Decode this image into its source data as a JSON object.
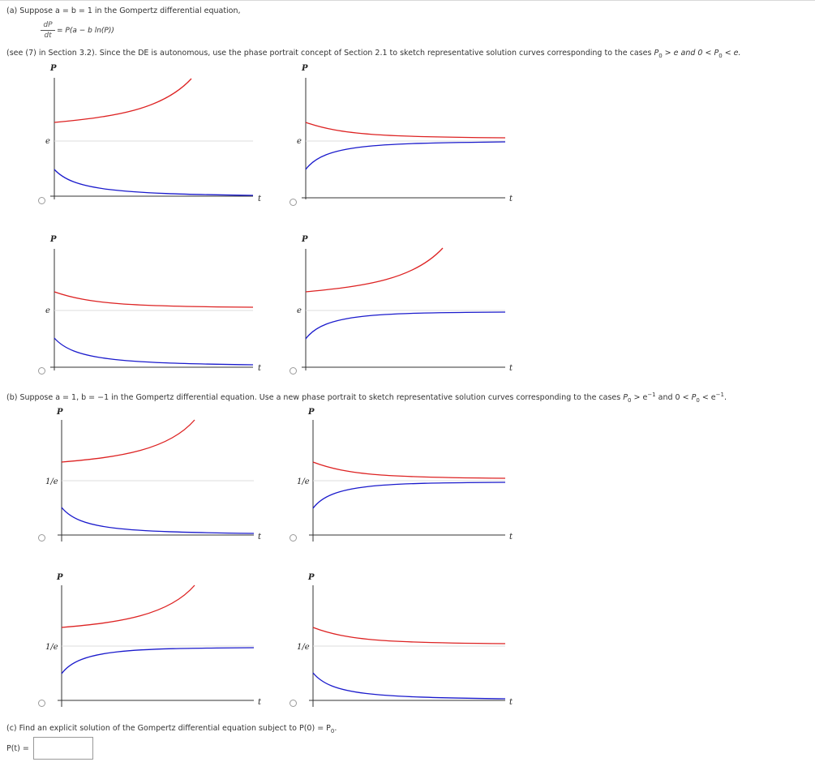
{
  "part_a": {
    "intro": "(a) Suppose a = b = 1 in the Gompertz differential equation,",
    "eq_num": "dP",
    "eq_den": "dt",
    "eq_rhs": "= P(a − b ln(P))",
    "desc_pre": "(see (7) in Section 3.2). Since the DE is autonomous, use the phase portrait concept of Section 2.1 to sketch representative solution curves corresponding to the cases ",
    "desc_c1_base": "P",
    "desc_c1_sub": "0",
    "desc_c1_rel": " > e and 0 < ",
    "desc_c2_base": "P",
    "desc_c2_sub": "0",
    "desc_c2_rel": " < e.",
    "eq_label": "e"
  },
  "part_b": {
    "pre": "(b) Suppose a = 1, b = −1 in the Gompertz differential equation. Use a new phase portrait to sketch representative solution curves corresponding to the cases ",
    "c1_base": "P",
    "c1_sub": "0",
    "c1_rel": " > e",
    "c1_sup": "−1",
    "mid": " and 0 < ",
    "c2_base": "P",
    "c2_sub": "0",
    "c2_rel": " < e",
    "c2_sup": "−1",
    "end": ".",
    "eq_label": "1/e"
  },
  "part_c": {
    "pre": "(c) Find an explicit solution of the Gompertz differential equation subject to P(0) = P",
    "sub": "0",
    "end": ".",
    "answer_label": "P(t) =",
    "answer_value": ""
  },
  "axis_labels": {
    "y": "P",
    "x": "t"
  },
  "colors": {
    "upper_curve": "#dd2222",
    "lower_curve": "#1a1acc",
    "equilibrium_line": "#dddddd",
    "axis": "#333333"
  },
  "graph_curves": {
    "a1": {
      "upper": "increasing",
      "lower": "decreasing"
    },
    "a2": {
      "upper": "decreasing",
      "lower": "increasing"
    },
    "a3": {
      "upper": "decreasing",
      "lower": "decreasing"
    },
    "a4": {
      "upper": "increasing",
      "lower": "increasing"
    },
    "b1": {
      "upper": "increasing",
      "lower": "decreasing"
    },
    "b2": {
      "upper": "decreasing",
      "lower": "increasing"
    },
    "b3": {
      "upper": "increasing",
      "lower": "increasing"
    },
    "b4": {
      "upper": "decreasing",
      "lower": "decreasing"
    }
  }
}
